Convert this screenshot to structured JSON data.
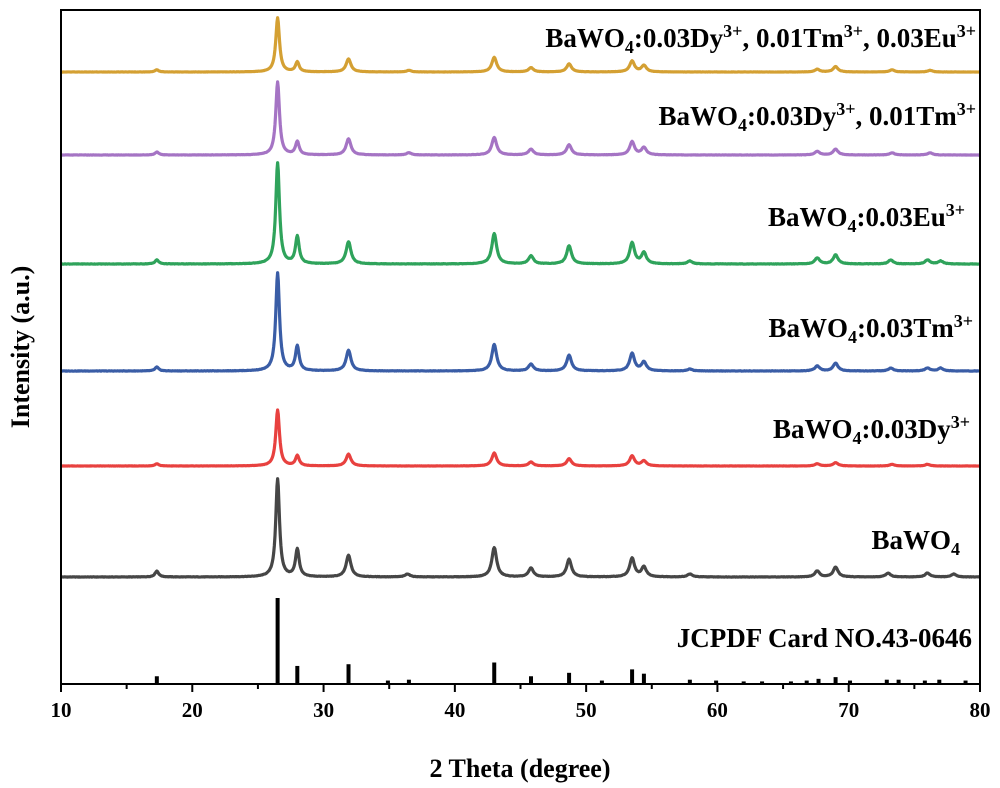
{
  "chart_data": {
    "type": "line",
    "title": "",
    "xlabel": "2 Theta (degree)",
    "ylabel": "Intensity (a.u.)",
    "xlim": [
      10,
      80
    ],
    "x_ticks": [
      "10",
      "20",
      "30",
      "40",
      "50",
      "60",
      "70",
      "80"
    ],
    "grid": false,
    "reference": {
      "name": "JCPDF Card NO.43-0646",
      "color": "#000000",
      "peaks": [
        {
          "x": 17.3,
          "v": 0.09
        },
        {
          "x": 26.5,
          "v": 1.0
        },
        {
          "x": 28.0,
          "v": 0.21
        },
        {
          "x": 31.9,
          "v": 0.23
        },
        {
          "x": 34.9,
          "v": 0.04
        },
        {
          "x": 36.5,
          "v": 0.05
        },
        {
          "x": 43.0,
          "v": 0.25
        },
        {
          "x": 45.8,
          "v": 0.09
        },
        {
          "x": 48.7,
          "v": 0.13
        },
        {
          "x": 51.2,
          "v": 0.04
        },
        {
          "x": 53.5,
          "v": 0.17
        },
        {
          "x": 54.4,
          "v": 0.12
        },
        {
          "x": 57.9,
          "v": 0.05
        },
        {
          "x": 59.9,
          "v": 0.04
        },
        {
          "x": 62.0,
          "v": 0.03
        },
        {
          "x": 63.4,
          "v": 0.03
        },
        {
          "x": 65.6,
          "v": 0.03
        },
        {
          "x": 66.8,
          "v": 0.04
        },
        {
          "x": 67.7,
          "v": 0.06
        },
        {
          "x": 69.0,
          "v": 0.08
        },
        {
          "x": 70.1,
          "v": 0.04
        },
        {
          "x": 72.9,
          "v": 0.05
        },
        {
          "x": 73.8,
          "v": 0.05
        },
        {
          "x": 75.8,
          "v": 0.04
        },
        {
          "x": 76.9,
          "v": 0.05
        },
        {
          "x": 78.9,
          "v": 0.04
        }
      ]
    },
    "series": [
      {
        "name": "BaWO4",
        "label_parts": [
          {
            "t": "BaWO"
          },
          {
            "sub": "4"
          }
        ],
        "color": "#464646",
        "baseline": 0.0,
        "peaks": [
          {
            "x": 17.3,
            "h": 0.06
          },
          {
            "x": 26.5,
            "h": 1.0
          },
          {
            "x": 28.0,
            "h": 0.28
          },
          {
            "x": 31.9,
            "h": 0.22
          },
          {
            "x": 36.4,
            "h": 0.03
          },
          {
            "x": 43.0,
            "h": 0.3
          },
          {
            "x": 45.8,
            "h": 0.09
          },
          {
            "x": 48.7,
            "h": 0.18
          },
          {
            "x": 53.5,
            "h": 0.19
          },
          {
            "x": 54.4,
            "h": 0.1
          },
          {
            "x": 57.9,
            "h": 0.03
          },
          {
            "x": 67.6,
            "h": 0.06
          },
          {
            "x": 69.0,
            "h": 0.1
          },
          {
            "x": 73.0,
            "h": 0.04
          },
          {
            "x": 76.0,
            "h": 0.04
          },
          {
            "x": 78.0,
            "h": 0.03
          }
        ]
      },
      {
        "name": "BaWO4:0.03Dy3+",
        "label_parts": [
          {
            "t": "BaWO"
          },
          {
            "sub": "4"
          },
          {
            "t": ":0.03Dy"
          },
          {
            "sup": "3+"
          }
        ],
        "color": "#e8413f",
        "baseline": 0.0,
        "peaks": [
          {
            "x": 17.3,
            "h": 0.04
          },
          {
            "x": 26.5,
            "h": 1.0
          },
          {
            "x": 28.0,
            "h": 0.18
          },
          {
            "x": 31.9,
            "h": 0.21
          },
          {
            "x": 43.0,
            "h": 0.23
          },
          {
            "x": 45.8,
            "h": 0.07
          },
          {
            "x": 48.7,
            "h": 0.13
          },
          {
            "x": 53.5,
            "h": 0.18
          },
          {
            "x": 54.4,
            "h": 0.09
          },
          {
            "x": 67.6,
            "h": 0.04
          },
          {
            "x": 69.0,
            "h": 0.06
          },
          {
            "x": 73.3,
            "h": 0.03
          },
          {
            "x": 76.0,
            "h": 0.03
          }
        ]
      },
      {
        "name": "BaWO4:0.03Tm3+",
        "label_parts": [
          {
            "t": "BaWO"
          },
          {
            "sub": "4"
          },
          {
            "t": ":0.03Tm"
          },
          {
            "sup": "3+"
          }
        ],
        "color": "#3a5da6",
        "baseline": 0.0,
        "peaks": [
          {
            "x": 17.3,
            "h": 0.04
          },
          {
            "x": 26.5,
            "h": 1.0
          },
          {
            "x": 28.0,
            "h": 0.25
          },
          {
            "x": 31.9,
            "h": 0.21
          },
          {
            "x": 43.0,
            "h": 0.27
          },
          {
            "x": 45.8,
            "h": 0.07
          },
          {
            "x": 48.7,
            "h": 0.16
          },
          {
            "x": 53.5,
            "h": 0.18
          },
          {
            "x": 54.4,
            "h": 0.09
          },
          {
            "x": 57.9,
            "h": 0.02
          },
          {
            "x": 67.6,
            "h": 0.05
          },
          {
            "x": 69.0,
            "h": 0.08
          },
          {
            "x": 73.2,
            "h": 0.03
          },
          {
            "x": 76.0,
            "h": 0.03
          },
          {
            "x": 77.0,
            "h": 0.03
          }
        ]
      },
      {
        "name": "BaWO4:0.03Eu3+",
        "label_parts": [
          {
            "t": "BaWO"
          },
          {
            "sub": "4"
          },
          {
            "t": ":0.03Eu"
          },
          {
            "sup": "3+"
          }
        ],
        "color": "#2fa35b",
        "baseline": 0.0,
        "peaks": [
          {
            "x": 17.3,
            "h": 0.04
          },
          {
            "x": 26.5,
            "h": 1.0
          },
          {
            "x": 28.0,
            "h": 0.27
          },
          {
            "x": 31.9,
            "h": 0.22
          },
          {
            "x": 43.0,
            "h": 0.3
          },
          {
            "x": 45.8,
            "h": 0.08
          },
          {
            "x": 48.7,
            "h": 0.18
          },
          {
            "x": 53.5,
            "h": 0.21
          },
          {
            "x": 54.4,
            "h": 0.11
          },
          {
            "x": 57.9,
            "h": 0.03
          },
          {
            "x": 67.6,
            "h": 0.06
          },
          {
            "x": 69.0,
            "h": 0.09
          },
          {
            "x": 73.2,
            "h": 0.04
          },
          {
            "x": 76.0,
            "h": 0.04
          },
          {
            "x": 77.0,
            "h": 0.03
          }
        ]
      },
      {
        "name": "BaWO4:0.03Dy3+, 0.01Tm3+",
        "label_parts": [
          {
            "t": "BaWO"
          },
          {
            "sub": "4"
          },
          {
            "t": ":0.03Dy"
          },
          {
            "sup": "3+"
          },
          {
            "t": ", 0.01Tm"
          },
          {
            "sup": "3+"
          }
        ],
        "color": "#a574c4",
        "baseline": 0.0,
        "peaks": [
          {
            "x": 17.3,
            "h": 0.04
          },
          {
            "x": 26.5,
            "h": 1.0
          },
          {
            "x": 28.0,
            "h": 0.18
          },
          {
            "x": 31.9,
            "h": 0.22
          },
          {
            "x": 36.5,
            "h": 0.03
          },
          {
            "x": 43.0,
            "h": 0.24
          },
          {
            "x": 45.8,
            "h": 0.08
          },
          {
            "x": 48.7,
            "h": 0.14
          },
          {
            "x": 53.5,
            "h": 0.18
          },
          {
            "x": 54.4,
            "h": 0.1
          },
          {
            "x": 67.6,
            "h": 0.05
          },
          {
            "x": 69.0,
            "h": 0.08
          },
          {
            "x": 73.3,
            "h": 0.03
          },
          {
            "x": 76.2,
            "h": 0.03
          }
        ]
      },
      {
        "name": "BaWO4:0.03Dy3+, 0.01Tm3+, 0.03Eu3+",
        "label_parts": [
          {
            "t": "BaWO"
          },
          {
            "sub": "4"
          },
          {
            "t": ":0.03Dy"
          },
          {
            "sup": "3+"
          },
          {
            "t": ", 0.01Tm"
          },
          {
            "sup": "3+"
          },
          {
            "t": ", 0.03Eu"
          },
          {
            "sup": "3+"
          }
        ],
        "color": "#d4a033",
        "baseline": 0.0,
        "peaks": [
          {
            "x": 17.3,
            "h": 0.04
          },
          {
            "x": 26.5,
            "h": 1.0
          },
          {
            "x": 28.0,
            "h": 0.18
          },
          {
            "x": 31.9,
            "h": 0.24
          },
          {
            "x": 36.5,
            "h": 0.03
          },
          {
            "x": 43.0,
            "h": 0.27
          },
          {
            "x": 45.8,
            "h": 0.08
          },
          {
            "x": 48.7,
            "h": 0.15
          },
          {
            "x": 53.5,
            "h": 0.2
          },
          {
            "x": 54.4,
            "h": 0.12
          },
          {
            "x": 67.6,
            "h": 0.05
          },
          {
            "x": 69.0,
            "h": 0.1
          },
          {
            "x": 73.3,
            "h": 0.04
          },
          {
            "x": 76.2,
            "h": 0.03
          }
        ]
      }
    ]
  }
}
